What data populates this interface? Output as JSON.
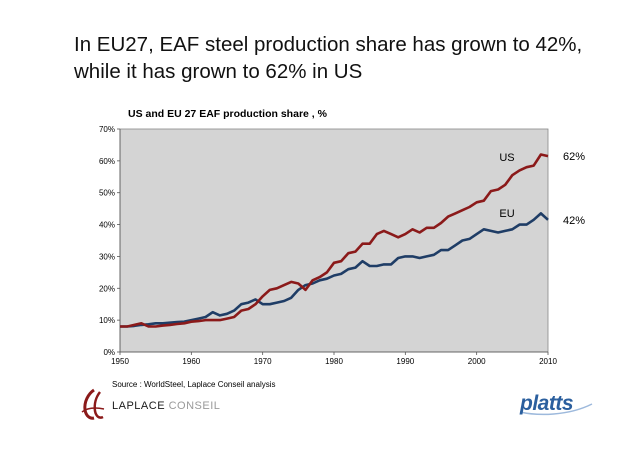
{
  "headline": "In EU27, EAF steel production share has grown to 42%, while it has grown to 62% in US",
  "source": "Source : WorldSteel, Laplace Conseil analysis",
  "brand": {
    "laplace_bold": "LAPLACE",
    "laplace_light": "CONSEIL",
    "platts": "platts"
  },
  "colors": {
    "us": "#8b1a1a",
    "eu": "#1f3d66",
    "plot_bg": "#d4d4d4",
    "platts": "#2b5f9e",
    "laplace": "#8b1a1a"
  },
  "chart_data": {
    "type": "line",
    "title": "US and EU 27 EAF production share , %",
    "xlabel": "",
    "ylabel": "",
    "xlim": [
      1950,
      2010
    ],
    "ylim": [
      0,
      70
    ],
    "xticks": [
      1950,
      1960,
      1970,
      1980,
      1990,
      2000,
      2010
    ],
    "yticks": [
      0,
      10,
      20,
      30,
      40,
      50,
      60,
      70
    ],
    "ytick_labels": [
      "0%",
      "10%",
      "20%",
      "30%",
      "40%",
      "50%",
      "60%",
      "70%"
    ],
    "grid": false,
    "x": [
      1950,
      1951,
      1952,
      1953,
      1954,
      1955,
      1956,
      1957,
      1958,
      1959,
      1960,
      1961,
      1962,
      1963,
      1964,
      1965,
      1966,
      1967,
      1968,
      1969,
      1970,
      1971,
      1972,
      1973,
      1974,
      1975,
      1976,
      1977,
      1978,
      1979,
      1980,
      1981,
      1982,
      1983,
      1984,
      1985,
      1986,
      1987,
      1988,
      1989,
      1990,
      1991,
      1992,
      1993,
      1994,
      1995,
      1996,
      1997,
      1998,
      1999,
      2000,
      2001,
      2002,
      2003,
      2004,
      2005,
      2006,
      2007,
      2008,
      2009,
      2010
    ],
    "series": [
      {
        "name": "US",
        "end_label": "US",
        "end_value_label": "62%",
        "values": [
          8,
          8,
          8.5,
          9,
          8,
          8,
          8.3,
          8.5,
          8.8,
          9,
          9.5,
          9.7,
          10,
          10,
          10,
          10.5,
          11,
          13,
          13.5,
          15,
          17.5,
          19.5,
          20,
          21,
          22,
          21.5,
          19.5,
          22.5,
          23.5,
          25,
          28,
          28.5,
          31,
          31.5,
          34,
          34,
          37,
          38,
          37,
          36,
          37,
          38.5,
          37.5,
          39,
          39,
          40.5,
          42.5,
          43.5,
          44.5,
          45.5,
          47,
          47.5,
          50.5,
          51,
          52.5,
          55.5,
          57,
          58,
          58.5,
          62,
          61.5
        ]
      },
      {
        "name": "EU",
        "end_label": "EU",
        "end_value_label": "42%",
        "values": [
          8,
          8,
          8.2,
          8.5,
          8.7,
          9,
          9,
          9.2,
          9.4,
          9.5,
          10,
          10.5,
          11,
          12.5,
          11.5,
          12,
          13,
          15,
          15.5,
          16.5,
          15,
          15,
          15.5,
          16,
          17,
          19.5,
          21,
          21.5,
          22.5,
          23,
          24,
          24.5,
          26,
          26.5,
          28.5,
          27,
          27,
          27.5,
          27.5,
          29.5,
          30,
          30,
          29.5,
          30,
          30.5,
          32,
          32,
          33.5,
          35,
          35.5,
          37,
          38.5,
          38,
          37.5,
          38,
          38.5,
          40,
          40,
          41.5,
          43.5,
          41.5
        ]
      }
    ]
  }
}
